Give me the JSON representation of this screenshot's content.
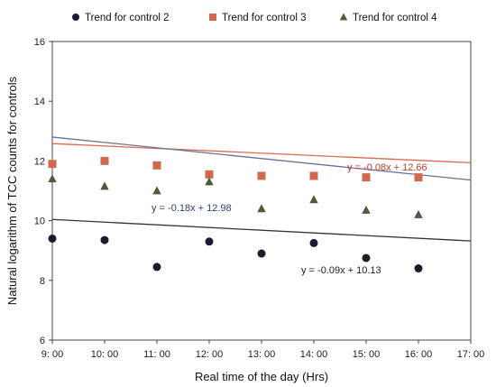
{
  "chart_data": {
    "type": "scatter",
    "title": "",
    "xlabel": "Real time of the day (Hrs)",
    "ylabel": "Natural logarithm of TCC counts for controls",
    "xlim": [
      9,
      17
    ],
    "ylim": [
      6,
      16
    ],
    "x_ticks": [
      9,
      10,
      11,
      12,
      13,
      14,
      15,
      16,
      17
    ],
    "x_tick_labels": [
      "9: 00",
      "10: 00",
      "11: 00",
      "12: 00",
      "13: 00",
      "14: 00",
      "15: 00",
      "16: 00",
      "17: 00"
    ],
    "y_ticks": [
      6,
      8,
      10,
      12,
      14,
      16
    ],
    "y_tick_labels": [
      "6",
      "8",
      "10",
      "12",
      "14",
      "16"
    ],
    "grid": false,
    "legend_position": "top",
    "series": [
      {
        "name": "Trend for control 2",
        "marker": "circle",
        "color": "#1c1c2e",
        "trend_color": "#333333",
        "x": [
          9,
          10,
          11,
          12,
          13,
          14,
          15,
          16
        ],
        "y": [
          9.4,
          9.35,
          8.45,
          9.3,
          8.9,
          9.25,
          8.75,
          8.4
        ],
        "trend": {
          "slope": -0.09,
          "intercept": 10.13,
          "equation": "y = -0.09x + 10.13",
          "color": "#1c1c2e"
        }
      },
      {
        "name": "Trend for control 3",
        "marker": "square",
        "color": "#d2694f",
        "trend_color": "#d96b4f",
        "x": [
          9,
          10,
          11,
          12,
          13,
          14,
          15,
          16
        ],
        "y": [
          11.9,
          12.0,
          11.85,
          11.55,
          11.5,
          11.5,
          11.45,
          11.45
        ],
        "trend": {
          "slope": -0.08,
          "intercept": 12.66,
          "equation": "y = -0.08x + 12.66",
          "color": "#c0392b"
        }
      },
      {
        "name": "Trend for control 4",
        "marker": "triangle",
        "color": "#4e5a3a",
        "trend_color": "#6a7196",
        "x": [
          9,
          10,
          11,
          12,
          13,
          14,
          15,
          16
        ],
        "y": [
          11.4,
          11.15,
          11.0,
          11.3,
          10.4,
          10.7,
          10.35,
          10.2
        ],
        "trend": {
          "slope": -0.18,
          "intercept": 12.98,
          "equation": "y = -0.18x + 12.98",
          "color": "#2c3e73"
        }
      }
    ]
  }
}
